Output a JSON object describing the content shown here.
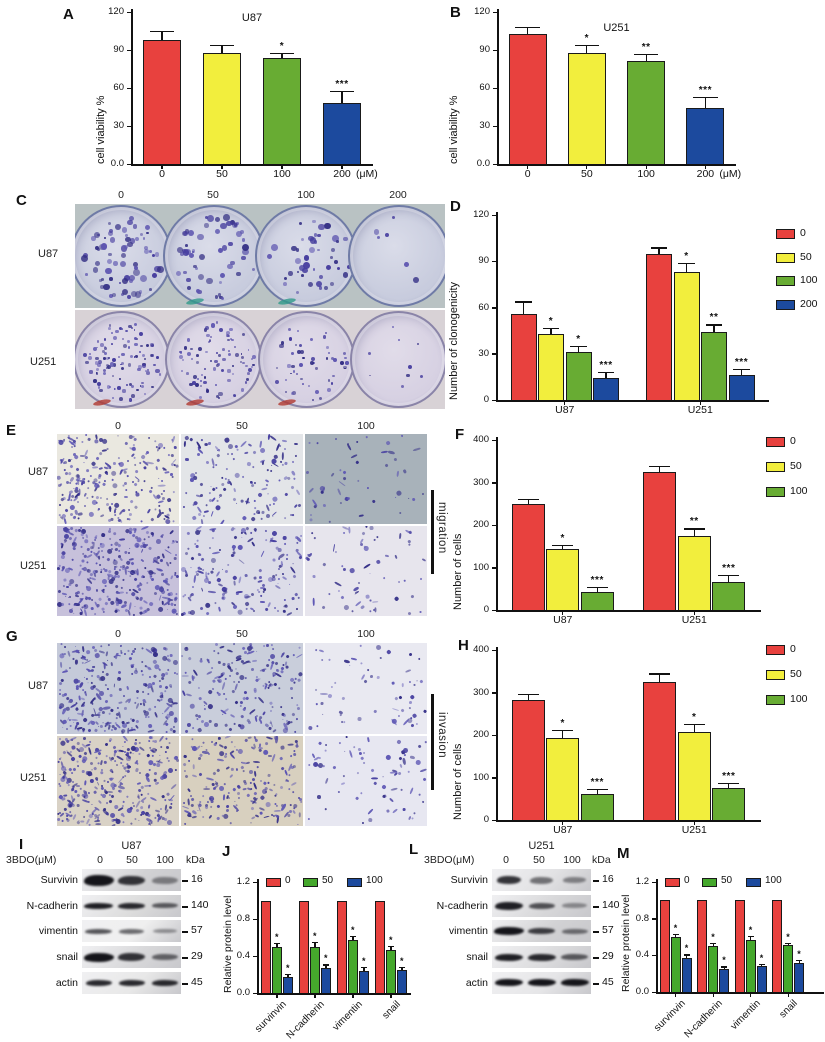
{
  "figure": {
    "colors": {
      "red": "#e8413e",
      "yellow": "#f2ee3d",
      "green": "#68ac33",
      "blue": "#1c4a9e",
      "green_bright": "#45a82c"
    }
  },
  "panels": {
    "A": {
      "letter": "A",
      "chart": {
        "type": "bar",
        "title": "U87",
        "ylabel": "cell viability %",
        "ylim": [
          0,
          120
        ],
        "yticks": [
          0,
          30,
          60,
          90,
          120
        ],
        "ytick_labels": [
          "0.0",
          "30",
          "60",
          "90",
          "120"
        ],
        "categories": [
          "0",
          "50",
          "100",
          "200"
        ],
        "x_suffix": "(μM)",
        "colors": [
          "#e8413e",
          "#f2ee3d",
          "#68ac33",
          "#1c4a9e"
        ],
        "series": [
          {
            "name": "viability",
            "values": [
              98,
              88,
              84,
              48
            ],
            "errors": [
              7,
              6,
              4,
              10
            ],
            "sig": [
              "",
              "",
              "*",
              "***"
            ]
          }
        ]
      }
    },
    "B": {
      "letter": "B",
      "chart": {
        "type": "bar",
        "title": "U251",
        "ylabel": "cell viability %",
        "ylim": [
          0,
          120
        ],
        "yticks": [
          0,
          30,
          60,
          90,
          120
        ],
        "ytick_labels": [
          "0.0",
          "30",
          "60",
          "90",
          "120"
        ],
        "categories": [
          "0",
          "50",
          "100",
          "200"
        ],
        "x_suffix": "(μM)",
        "colors": [
          "#e8413e",
          "#f2ee3d",
          "#68ac33",
          "#1c4a9e"
        ],
        "series": [
          {
            "name": "viability",
            "values": [
              103,
              88,
              81,
              44
            ],
            "errors": [
              5,
              6,
              6,
              9
            ],
            "sig": [
              "",
              "*",
              "**",
              "***"
            ]
          }
        ]
      }
    },
    "C": {
      "letter": "C",
      "col_headers": [
        "0",
        "50",
        "100",
        "200"
      ],
      "row_labels": [
        "U87",
        "U251"
      ],
      "colony_counts": [
        [
          70,
          56,
          44,
          6
        ],
        [
          112,
          88,
          52,
          9
        ]
      ],
      "dot_colors": [
        "#453c9e",
        "#332e84",
        "#5d55b0"
      ],
      "strips": [
        {
          "bg": "#b9c2c3",
          "dish_fill": "#c7cbdd",
          "dish_light": "#dadce9",
          "dish_edge": "#aab0cc",
          "dish_rim": "#6f7ba6",
          "dot_min": 2.5,
          "dot_max": 7,
          "streak_color": "#2f9a8a",
          "streak_dishes": [
            1,
            2
          ]
        },
        {
          "bg": "#d8d2d6",
          "dish_fill": "#d6d0e2",
          "dish_light": "#e1dce9",
          "dish_edge": "#b8b2cc",
          "dish_rim": "#8a84a8",
          "dot_min": 1.6,
          "dot_max": 4.2,
          "streak_color": "#b03830",
          "streak_dishes": [
            0,
            1,
            2
          ]
        }
      ]
    },
    "D": {
      "letter": "D",
      "chart": {
        "type": "bar",
        "ylabel": "Number of clonogenicity",
        "ylim": [
          0,
          120
        ],
        "yticks": [
          0,
          30,
          60,
          90,
          120
        ],
        "ytick_labels": [
          "0",
          "30",
          "60",
          "90",
          "120"
        ],
        "categories": [
          "U87",
          "U251"
        ],
        "series": [
          {
            "name": "0",
            "color": "#e8413e",
            "values": [
              56,
              95
            ],
            "errors": [
              8,
              4
            ],
            "sig": [
              "",
              ""
            ]
          },
          {
            "name": "50",
            "color": "#f2ee3d",
            "values": [
              43,
              83
            ],
            "errors": [
              4,
              6
            ],
            "sig": [
              "*",
              "*"
            ]
          },
          {
            "name": "100",
            "color": "#68ac33",
            "values": [
              31,
              44
            ],
            "errors": [
              4,
              5
            ],
            "sig": [
              "*",
              "**"
            ]
          },
          {
            "name": "200",
            "color": "#1c4a9e",
            "values": [
              14,
              16
            ],
            "errors": [
              4,
              4
            ],
            "sig": [
              "***",
              "***"
            ]
          }
        ]
      }
    },
    "E": {
      "letter": "E",
      "col_headers": [
        "0",
        "50",
        "100"
      ],
      "row_labels": [
        "U87",
        "U251"
      ],
      "side_label": "migration",
      "density": [
        [
          240,
          140,
          48
        ],
        [
          320,
          170,
          65
        ]
      ],
      "bg": [
        [
          "#eae8e0",
          "#e3e5e8",
          "#a8b2ba"
        ],
        [
          "#c7c1db",
          "#dcdce8",
          "#e7e5ed"
        ]
      ],
      "dot_colors": [
        "#4a43a2",
        "#353088",
        "#5d56b4"
      ]
    },
    "F": {
      "letter": "F",
      "chart": {
        "type": "bar",
        "ylabel": "Number of cells",
        "ylim": [
          0,
          400
        ],
        "yticks": [
          0,
          100,
          200,
          300,
          400
        ],
        "ytick_labels": [
          "0",
          "100",
          "200",
          "300",
          "400"
        ],
        "categories": [
          "U87",
          "U251"
        ],
        "series": [
          {
            "name": "0",
            "color": "#e8413e",
            "values": [
              250,
              325
            ],
            "errors": [
              12,
              15
            ],
            "sig": [
              "",
              ""
            ]
          },
          {
            "name": "50",
            "color": "#f2ee3d",
            "values": [
              143,
              175
            ],
            "errors": [
              10,
              17
            ],
            "sig": [
              "*",
              "**"
            ]
          },
          {
            "name": "100",
            "color": "#68ac33",
            "values": [
              42,
              65
            ],
            "errors": [
              13,
              17
            ],
            "sig": [
              "***",
              "***"
            ]
          }
        ]
      }
    },
    "G": {
      "letter": "G",
      "col_headers": [
        "0",
        "50",
        "100"
      ],
      "row_labels": [
        "U87",
        "U251"
      ],
      "side_label": "invasion",
      "density": [
        [
          280,
          190,
          60
        ],
        [
          320,
          205,
          75
        ]
      ],
      "bg": [
        [
          "#c5cad9",
          "#c9cedb",
          "#e9e9f1"
        ],
        [
          "#d9d2c6",
          "#d8d0bf",
          "#e7e7f1"
        ]
      ],
      "dot_colors": [
        "#4a43a2",
        "#353088",
        "#5d56b4"
      ]
    },
    "H": {
      "letter": "H",
      "chart": {
        "type": "bar",
        "ylabel": "Number of cells",
        "ylim": [
          0,
          400
        ],
        "yticks": [
          0,
          100,
          200,
          300,
          400
        ],
        "ytick_labels": [
          "0",
          "100",
          "200",
          "300",
          "400"
        ],
        "categories": [
          "U87",
          "U251"
        ],
        "series": [
          {
            "name": "0",
            "color": "#e8413e",
            "values": [
              283,
              325
            ],
            "errors": [
              13,
              20
            ],
            "sig": [
              "",
              ""
            ]
          },
          {
            "name": "50",
            "color": "#f2ee3d",
            "values": [
              192,
              207
            ],
            "errors": [
              20,
              20
            ],
            "sig": [
              "*",
              "*"
            ]
          },
          {
            "name": "100",
            "color": "#68ac33",
            "values": [
              62,
              75
            ],
            "errors": [
              12,
              13
            ],
            "sig": [
              "***",
              "***"
            ]
          }
        ]
      }
    },
    "I": {
      "letter": "I",
      "title": "U87",
      "dose_label": "3BDO(μM)",
      "doses": [
        "0",
        "50",
        "100"
      ],
      "kda_label": "kDa",
      "rows": [
        {
          "protein": "Survivin",
          "kda": "16",
          "box": "#d2d2d4",
          "bands": [
            [
              1,
              30,
              11
            ],
            [
              0.85,
              27,
              9
            ],
            [
              0.45,
              26,
              7
            ]
          ]
        },
        {
          "protein": "N-cadherin",
          "kda": "140",
          "box": "#dcdcdc",
          "bands": [
            [
              0.95,
              29,
              6
            ],
            [
              0.9,
              27,
              6
            ],
            [
              0.65,
              26,
              5
            ]
          ]
        },
        {
          "protein": "vimentin",
          "kda": "57",
          "box": "#efefef",
          "bands": [
            [
              0.7,
              27,
              4.5
            ],
            [
              0.6,
              25,
              4.5
            ],
            [
              0.4,
              24,
              4
            ]
          ]
        },
        {
          "protein": "snail",
          "kda": "29",
          "box": "#d8d8da",
          "bands": [
            [
              1,
              30,
              9
            ],
            [
              0.85,
              27,
              8
            ],
            [
              0.6,
              26,
              6
            ]
          ]
        },
        {
          "protein": "actin",
          "kda": "45",
          "box": "#e8e8e8",
          "bands": [
            [
              0.9,
              26,
              6
            ],
            [
              0.9,
              26,
              6
            ],
            [
              0.9,
              26,
              6
            ]
          ]
        }
      ]
    },
    "J": {
      "letter": "J",
      "chart": {
        "type": "bar",
        "ylabel": "Relative protein level",
        "ylim": [
          0,
          1.2
        ],
        "yticks": [
          0,
          0.4,
          0.8,
          1.2
        ],
        "ytick_labels": [
          "0.0",
          "0.4",
          "0.8",
          "1.2"
        ],
        "categories": [
          "survinvin",
          "N-cadherin",
          "vimentin",
          "snail"
        ],
        "series": [
          {
            "name": "0",
            "color": "#e8413e",
            "values": [
              1,
              1,
              1,
              1
            ]
          },
          {
            "name": "50",
            "color": "#45a82c",
            "values": [
              0.5,
              0.5,
              0.57,
              0.47
            ],
            "errors": [
              0.04,
              0.05,
              0.05,
              0.04
            ],
            "sig": [
              "*",
              "*",
              "*",
              "*"
            ]
          },
          {
            "name": "100",
            "color": "#1c4a9e",
            "values": [
              0.17,
              0.27,
              0.24,
              0.25
            ],
            "errors": [
              0.04,
              0.04,
              0.04,
              0.03
            ],
            "sig": [
              "*",
              "*",
              "*",
              "*"
            ]
          }
        ]
      }
    },
    "L": {
      "letter": "L",
      "title": "U251",
      "dose_label": "3BDO(μM)",
      "doses": [
        "0",
        "50",
        "100"
      ],
      "kda_label": "kDa",
      "rows": [
        {
          "protein": "Survivin",
          "kda": "16",
          "box": "#e2e2e4",
          "bands": [
            [
              0.85,
              24,
              8
            ],
            [
              0.55,
              23,
              7
            ],
            [
              0.45,
              23,
              6
            ]
          ]
        },
        {
          "protein": "N-cadherin",
          "kda": "140",
          "box": "#d8d8da",
          "bands": [
            [
              0.95,
              28,
              8
            ],
            [
              0.7,
              26,
              6
            ],
            [
              0.4,
              25,
              5
            ]
          ]
        },
        {
          "protein": "vimentin",
          "kda": "57",
          "box": "#d2d2d4",
          "bands": [
            [
              1,
              30,
              8
            ],
            [
              0.8,
              27,
              6
            ],
            [
              0.55,
              26,
              5
            ]
          ]
        },
        {
          "protein": "snail",
          "kda": "29",
          "box": "#dcdcde",
          "bands": [
            [
              0.95,
              28,
              7
            ],
            [
              0.9,
              28,
              7
            ],
            [
              0.65,
              27,
              6
            ]
          ]
        },
        {
          "protein": "actin",
          "kda": "45",
          "box": "#e6e6e8",
          "bands": [
            [
              1,
              28,
              7
            ],
            [
              1,
              28,
              7
            ],
            [
              1,
              28,
              7
            ]
          ]
        }
      ]
    },
    "M": {
      "letter": "M",
      "chart": {
        "type": "bar",
        "ylabel": "Relative protein level",
        "ylim": [
          0,
          1.2
        ],
        "yticks": [
          0,
          0.4,
          0.8,
          1.2
        ],
        "ytick_labels": [
          "0.0",
          "0.4",
          "0.8",
          "1.2"
        ],
        "categories": [
          "survinvin",
          "N-cadherin",
          "vimentin",
          "snail"
        ],
        "series": [
          {
            "name": "0",
            "color": "#e8413e",
            "values": [
              1,
              1,
              1,
              1
            ]
          },
          {
            "name": "50",
            "color": "#45a82c",
            "values": [
              0.6,
              0.5,
              0.57,
              0.51
            ],
            "errors": [
              0.03,
              0.04,
              0.04,
              0.03
            ],
            "sig": [
              "*",
              "*",
              "*",
              "*"
            ]
          },
          {
            "name": "100",
            "color": "#1c4a9e",
            "values": [
              0.37,
              0.25,
              0.28,
              0.32
            ],
            "errors": [
              0.04,
              0.03,
              0.03,
              0.03
            ],
            "sig": [
              "*",
              "*",
              "*",
              "*"
            ]
          }
        ]
      }
    }
  }
}
